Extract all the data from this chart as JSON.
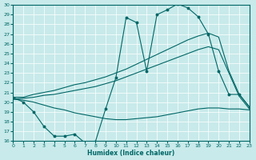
{
  "xlabel": "Humidex (Indice chaleur)",
  "bg_color": "#c8eaea",
  "grid_color": "#ffffff",
  "line_color": "#006666",
  "xlim": [
    0,
    23
  ],
  "ylim": [
    16,
    30
  ],
  "xticks": [
    0,
    1,
    2,
    3,
    4,
    5,
    6,
    7,
    8,
    9,
    10,
    11,
    12,
    13,
    14,
    15,
    16,
    17,
    18,
    19,
    20,
    21,
    22,
    23
  ],
  "yticks": [
    16,
    17,
    18,
    19,
    20,
    21,
    22,
    23,
    24,
    25,
    26,
    27,
    28,
    29,
    30
  ],
  "line1_x": [
    0,
    1,
    2,
    3,
    4,
    5,
    6,
    7,
    8,
    9,
    10,
    11,
    12,
    13,
    14,
    15,
    16,
    17,
    18,
    19,
    20,
    21,
    22,
    23
  ],
  "line1_y": [
    20.5,
    20.0,
    19.0,
    17.5,
    16.5,
    16.5,
    16.7,
    15.8,
    15.9,
    19.3,
    22.5,
    28.7,
    28.2,
    23.2,
    29.0,
    29.5,
    30.1,
    29.7,
    28.8,
    27.0,
    23.2,
    20.8,
    20.8,
    19.5
  ],
  "line2_x": [
    0,
    1,
    2,
    3,
    4,
    5,
    6,
    7,
    8,
    9,
    10,
    11,
    12,
    13,
    14,
    15,
    16,
    17,
    18,
    19,
    20,
    21,
    22,
    23
  ],
  "line2_y": [
    20.5,
    20.5,
    20.8,
    21.0,
    21.2,
    21.5,
    21.8,
    22.0,
    22.3,
    22.6,
    23.0,
    23.4,
    23.9,
    24.4,
    24.9,
    25.4,
    25.9,
    26.4,
    26.8,
    27.1,
    26.7,
    23.2,
    20.8,
    19.5
  ],
  "line3_x": [
    0,
    1,
    2,
    3,
    4,
    5,
    6,
    7,
    8,
    9,
    10,
    11,
    12,
    13,
    14,
    15,
    16,
    17,
    18,
    19,
    20,
    21,
    22,
    23
  ],
  "line3_y": [
    20.3,
    20.4,
    20.5,
    20.7,
    20.8,
    21.0,
    21.2,
    21.4,
    21.6,
    21.9,
    22.2,
    22.6,
    23.0,
    23.4,
    23.8,
    24.2,
    24.6,
    25.0,
    25.4,
    25.7,
    25.4,
    23.0,
    20.6,
    19.3
  ],
  "line4_x": [
    0,
    1,
    2,
    3,
    4,
    5,
    6,
    7,
    8,
    9,
    10,
    11,
    12,
    13,
    14,
    15,
    16,
    17,
    18,
    19,
    20,
    21,
    22,
    23
  ],
  "line4_y": [
    20.3,
    20.2,
    20.0,
    19.7,
    19.4,
    19.2,
    18.9,
    18.7,
    18.5,
    18.3,
    18.2,
    18.2,
    18.3,
    18.4,
    18.5,
    18.7,
    18.9,
    19.1,
    19.3,
    19.4,
    19.4,
    19.3,
    19.3,
    19.2
  ]
}
